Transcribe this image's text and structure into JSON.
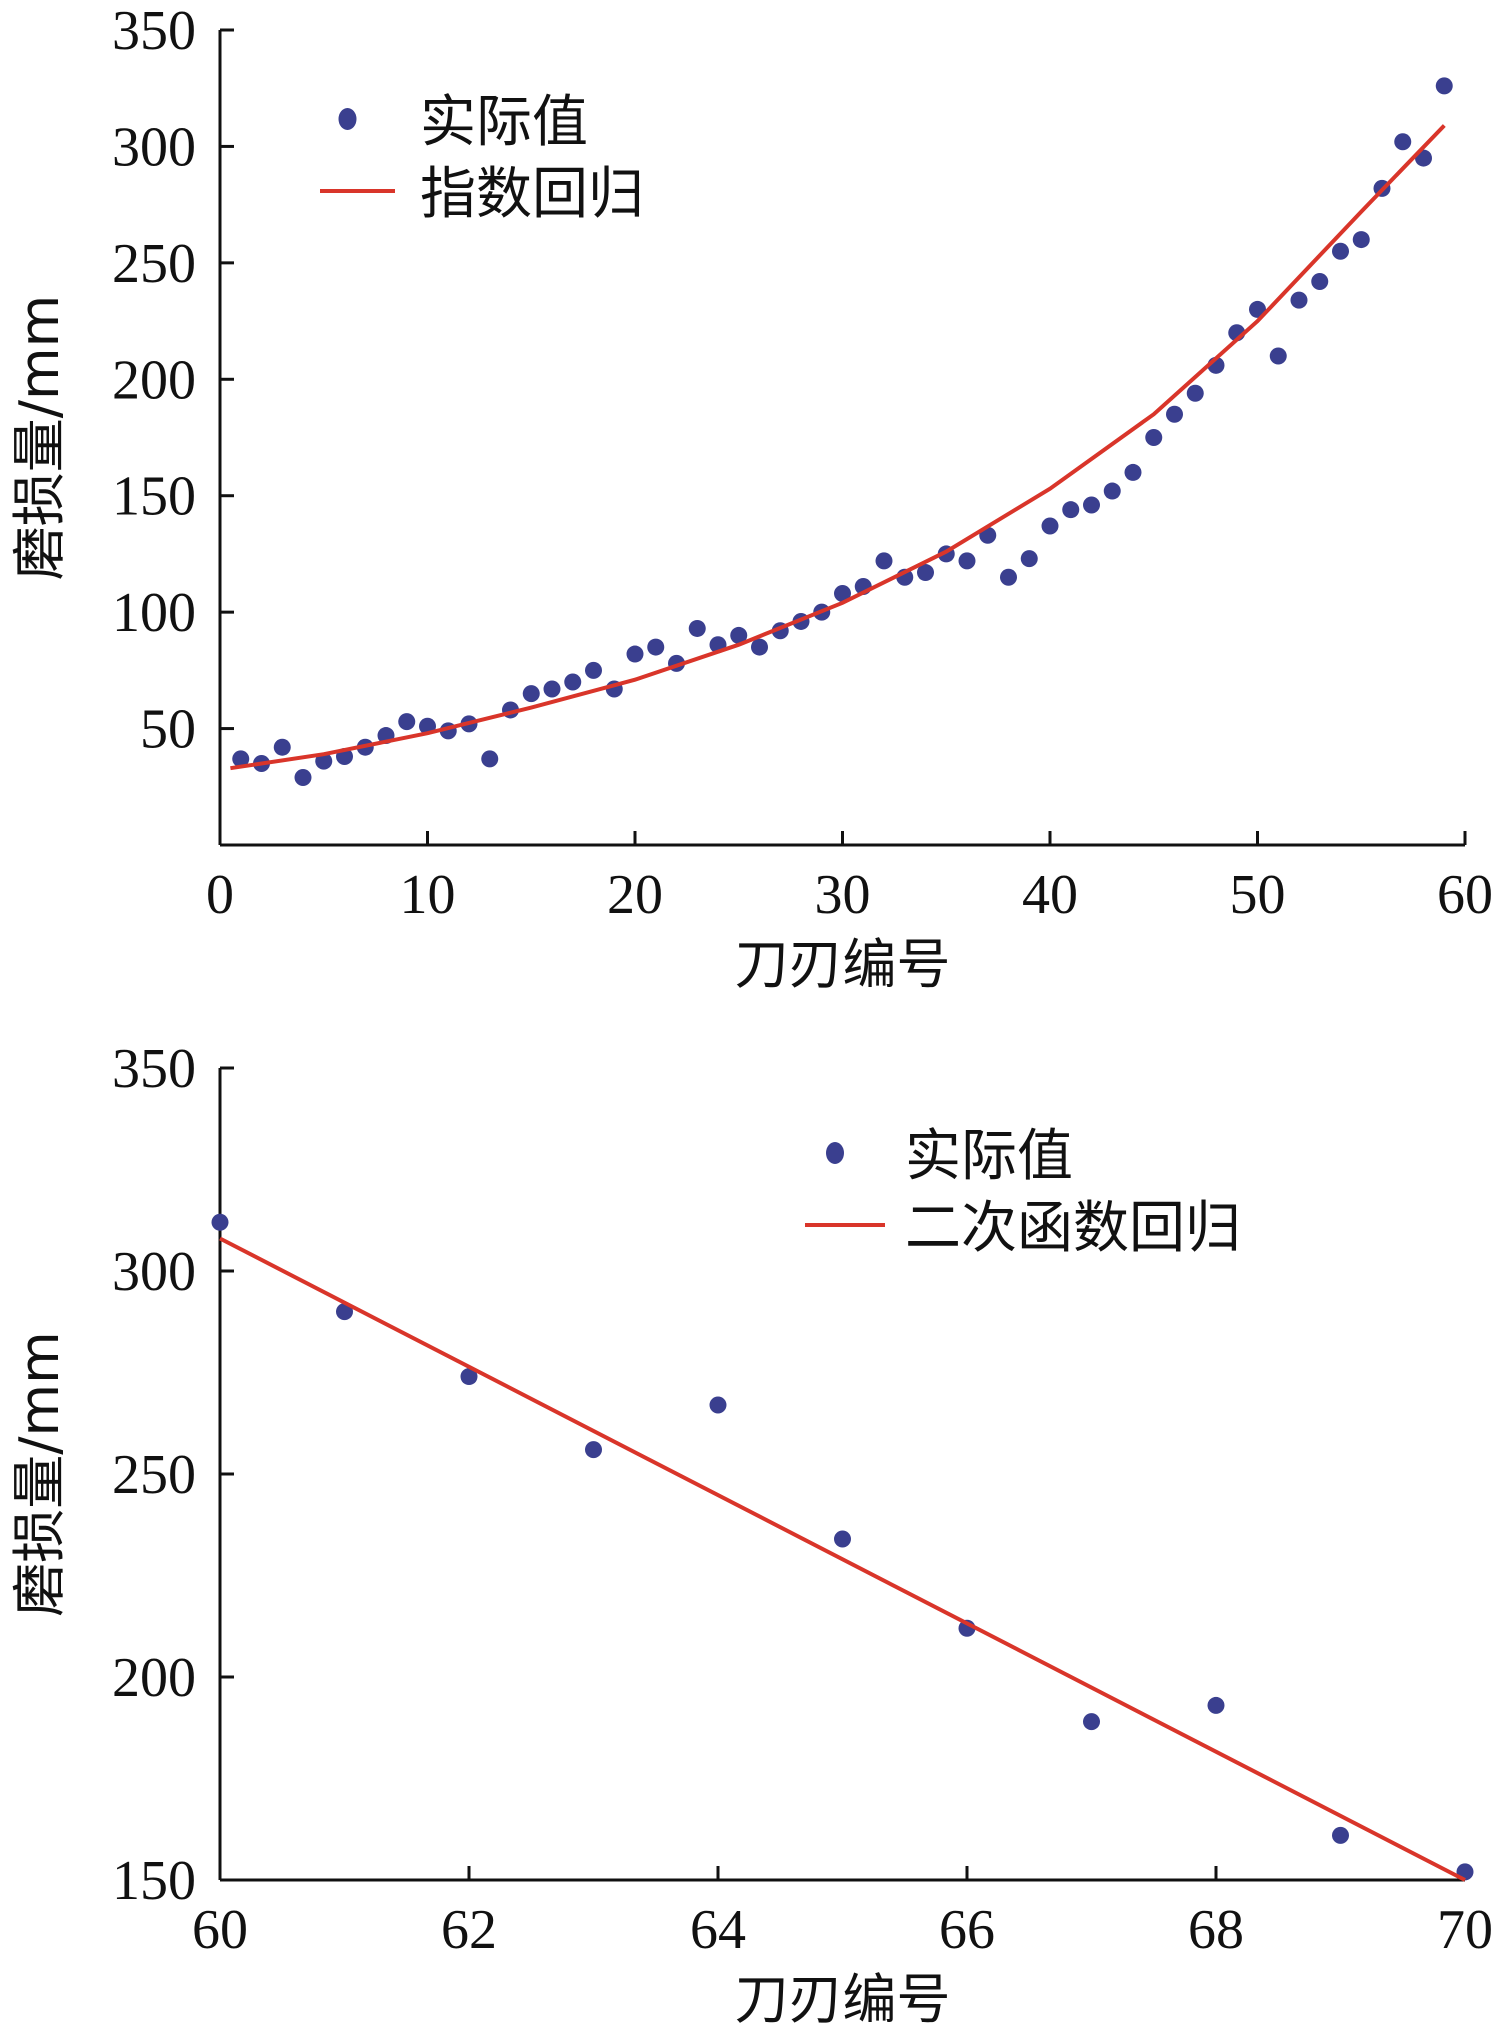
{
  "chart_data": [
    {
      "type": "scatter",
      "xlabel": "刀刃编号",
      "ylabel": "磨损量/mm",
      "xlim": [
        0,
        60
      ],
      "ylim": [
        0,
        350
      ],
      "xticks": [
        0,
        10,
        20,
        30,
        40,
        50,
        60
      ],
      "yticks": [
        50,
        100,
        150,
        200,
        250,
        300,
        350
      ],
      "legend_position": "top-left",
      "marker_color": "#3a3f8f",
      "line_color": "#d9352a",
      "series": [
        {
          "name": "实际值",
          "kind": "points",
          "x": [
            1,
            2,
            3,
            4,
            5,
            6,
            7,
            8,
            9,
            10,
            11,
            12,
            13,
            14,
            15,
            16,
            17,
            18,
            19,
            20,
            21,
            22,
            23,
            24,
            25,
            26,
            27,
            28,
            29,
            30,
            31,
            32,
            33,
            34,
            35,
            36,
            37,
            38,
            39,
            40,
            41,
            42,
            43,
            44,
            45,
            46,
            47,
            48,
            49,
            50,
            51,
            52,
            53,
            54,
            55,
            56,
            57,
            58,
            59
          ],
          "y": [
            37,
            35,
            42,
            29,
            36,
            38,
            42,
            47,
            53,
            51,
            49,
            52,
            37,
            58,
            65,
            67,
            70,
            75,
            67,
            82,
            85,
            78,
            93,
            86,
            90,
            85,
            92,
            96,
            100,
            108,
            111,
            122,
            115,
            117,
            125,
            122,
            133,
            115,
            123,
            137,
            144,
            146,
            152,
            160,
            175,
            185,
            194,
            206,
            220,
            230,
            210,
            234,
            242,
            255,
            260,
            282,
            302,
            295,
            326
          ]
        },
        {
          "name": "指数回归",
          "kind": "curve",
          "x": [
            0.5,
            5,
            10,
            15,
            20,
            25,
            30,
            35,
            40,
            45,
            50,
            55,
            59
          ],
          "y": [
            33,
            39,
            48,
            59,
            71,
            86,
            104,
            126,
            153,
            185,
            225,
            272,
            309
          ]
        }
      ]
    },
    {
      "type": "scatter",
      "xlabel": "刀刃编号",
      "ylabel": "磨损量/mm",
      "xlim": [
        60,
        70
      ],
      "ylim": [
        150,
        350
      ],
      "xticks": [
        60,
        62,
        64,
        66,
        68,
        70
      ],
      "yticks": [
        150,
        200,
        250,
        300,
        350
      ],
      "legend_position": "top-right",
      "marker_color": "#3a3f8f",
      "line_color": "#d9352a",
      "series": [
        {
          "name": "实际值",
          "kind": "points",
          "x": [
            60,
            61,
            62,
            63,
            64,
            65,
            66,
            67,
            68,
            69,
            70
          ],
          "y": [
            312,
            290,
            274,
            256,
            267,
            234,
            212,
            189,
            193,
            161,
            152
          ]
        },
        {
          "name": "二次函数回归",
          "kind": "curve",
          "x": [
            60,
            70
          ],
          "y": [
            308,
            150
          ]
        }
      ]
    }
  ]
}
